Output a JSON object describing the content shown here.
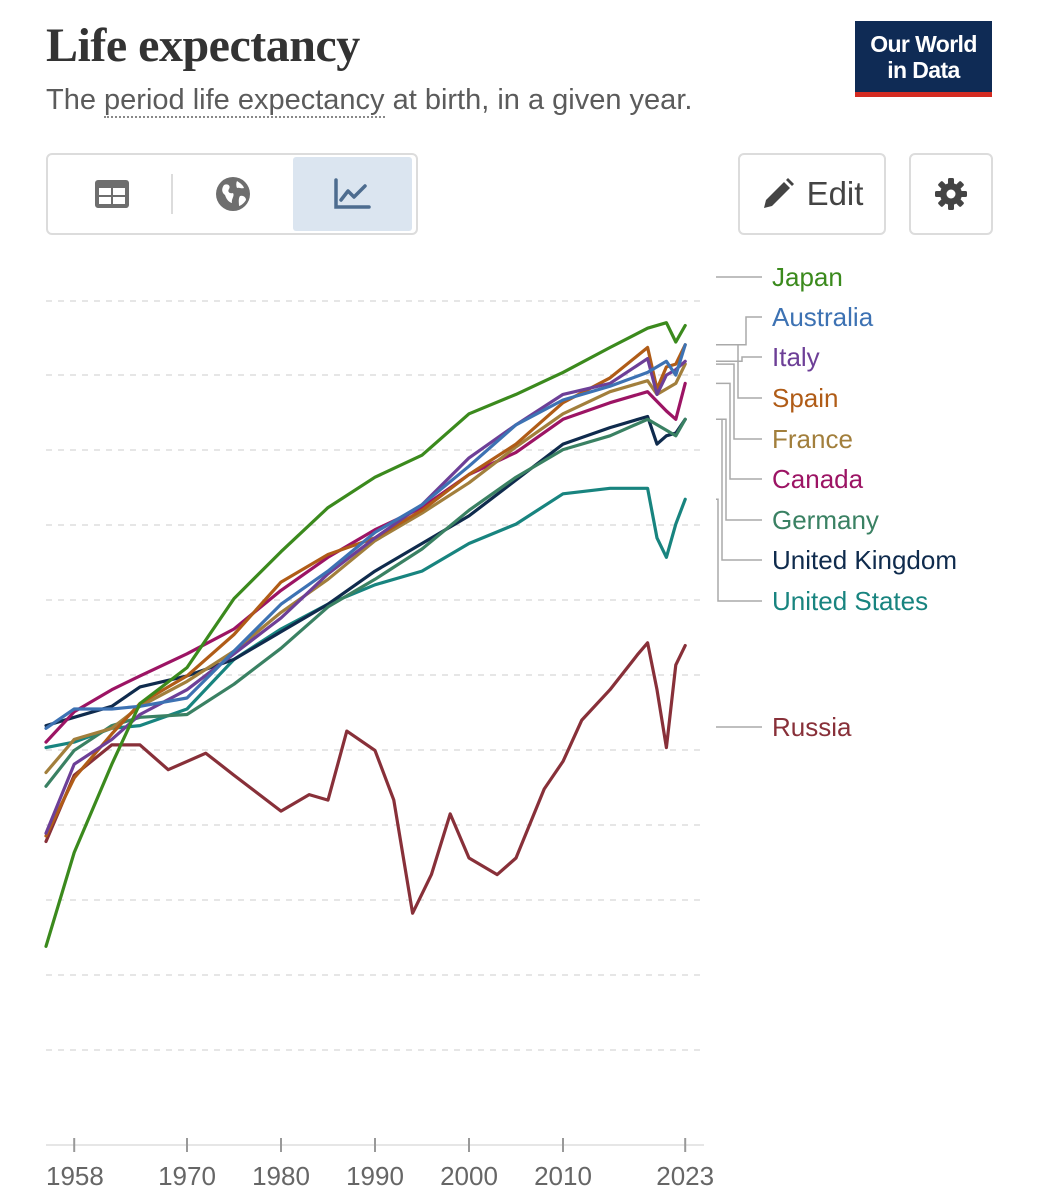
{
  "header": {
    "title": "Life expectancy",
    "subtitle_prefix": "The ",
    "subtitle_term": "period life expectancy",
    "subtitle_suffix": " at birth, in a given year.",
    "logo_line1": "Our World",
    "logo_line2": "in Data"
  },
  "toolbar": {
    "tabs": [
      "table",
      "map",
      "chart"
    ],
    "active_tab": "chart",
    "edit_label": "Edit",
    "icons": [
      "table-icon",
      "globe-icon",
      "line-chart-icon",
      "pencil-icon",
      "gear-icon"
    ]
  },
  "chart_data": {
    "type": "line",
    "title": "Life expectancy",
    "xlim": [
      1955,
      2025
    ],
    "ylim": [
      55,
      87
    ],
    "x_ticks": [
      1958,
      1970,
      1980,
      1990,
      2000,
      2010,
      2023
    ],
    "grid": "horizontal-dashed",
    "legend": "right, labels at line ends",
    "series": [
      {
        "name": "Japan",
        "color": "#3b8a1d",
        "points": [
          [
            1955,
            62.2
          ],
          [
            1958,
            65.6
          ],
          [
            1962,
            68.8
          ],
          [
            1965,
            71.0
          ],
          [
            1970,
            72.3
          ],
          [
            1975,
            74.8
          ],
          [
            1980,
            76.5
          ],
          [
            1985,
            78.1
          ],
          [
            1990,
            79.2
          ],
          [
            1995,
            80.0
          ],
          [
            2000,
            81.5
          ],
          [
            2005,
            82.2
          ],
          [
            2010,
            83.0
          ],
          [
            2015,
            83.9
          ],
          [
            2019,
            84.6
          ],
          [
            2021,
            84.8
          ],
          [
            2022,
            84.1
          ],
          [
            2023,
            84.7
          ]
        ]
      },
      {
        "name": "Australia",
        "color": "#3d72b3",
        "points": [
          [
            1955,
            70.1
          ],
          [
            1958,
            70.8
          ],
          [
            1962,
            70.8
          ],
          [
            1965,
            70.9
          ],
          [
            1970,
            71.2
          ],
          [
            1975,
            72.9
          ],
          [
            1980,
            74.6
          ],
          [
            1985,
            75.8
          ],
          [
            1990,
            77.2
          ],
          [
            1995,
            78.2
          ],
          [
            2000,
            79.6
          ],
          [
            2005,
            81.1
          ],
          [
            2010,
            82.0
          ],
          [
            2015,
            82.5
          ],
          [
            2019,
            83.0
          ],
          [
            2021,
            83.4
          ],
          [
            2022,
            82.9
          ],
          [
            2023,
            84.0
          ]
        ]
      },
      {
        "name": "Italy",
        "color": "#6d3f97",
        "points": [
          [
            1955,
            66.3
          ],
          [
            1958,
            68.8
          ],
          [
            1962,
            69.7
          ],
          [
            1965,
            70.6
          ],
          [
            1970,
            71.5
          ],
          [
            1975,
            72.8
          ],
          [
            1980,
            74.1
          ],
          [
            1985,
            75.7
          ],
          [
            1990,
            77.0
          ],
          [
            1995,
            78.2
          ],
          [
            2000,
            79.9
          ],
          [
            2005,
            81.1
          ],
          [
            2010,
            82.2
          ],
          [
            2015,
            82.6
          ],
          [
            2019,
            83.5
          ],
          [
            2020,
            82.2
          ],
          [
            2021,
            82.9
          ],
          [
            2022,
            83.1
          ],
          [
            2023,
            83.4
          ]
        ]
      },
      {
        "name": "Spain",
        "color": "#b05c17",
        "points": [
          [
            1955,
            66.2
          ],
          [
            1958,
            68.3
          ],
          [
            1962,
            69.9
          ],
          [
            1965,
            71.0
          ],
          [
            1970,
            72.0
          ],
          [
            1975,
            73.5
          ],
          [
            1980,
            75.4
          ],
          [
            1985,
            76.4
          ],
          [
            1990,
            77.0
          ],
          [
            1995,
            78.0
          ],
          [
            2000,
            79.3
          ],
          [
            2005,
            80.4
          ],
          [
            2010,
            81.9
          ],
          [
            2015,
            82.8
          ],
          [
            2019,
            83.9
          ],
          [
            2020,
            82.4
          ],
          [
            2021,
            83.2
          ],
          [
            2022,
            83.3
          ],
          [
            2023,
            84.0
          ]
        ]
      },
      {
        "name": "France",
        "color": "#a27f3c",
        "points": [
          [
            1955,
            68.5
          ],
          [
            1958,
            69.7
          ],
          [
            1962,
            70.1
          ],
          [
            1965,
            70.9
          ],
          [
            1970,
            71.8
          ],
          [
            1975,
            72.9
          ],
          [
            1980,
            74.3
          ],
          [
            1985,
            75.5
          ],
          [
            1990,
            76.9
          ],
          [
            1995,
            77.9
          ],
          [
            2000,
            79.0
          ],
          [
            2005,
            80.3
          ],
          [
            2010,
            81.5
          ],
          [
            2015,
            82.3
          ],
          [
            2019,
            82.7
          ],
          [
            2020,
            82.2
          ],
          [
            2021,
            82.4
          ],
          [
            2022,
            82.6
          ],
          [
            2023,
            83.3
          ]
        ]
      },
      {
        "name": "Canada",
        "color": "#9c1464",
        "points": [
          [
            1955,
            69.6
          ],
          [
            1958,
            70.7
          ],
          [
            1962,
            71.5
          ],
          [
            1965,
            72.0
          ],
          [
            1970,
            72.8
          ],
          [
            1975,
            73.7
          ],
          [
            1980,
            75.1
          ],
          [
            1985,
            76.3
          ],
          [
            1990,
            77.3
          ],
          [
            1995,
            78.1
          ],
          [
            2000,
            79.3
          ],
          [
            2005,
            80.1
          ],
          [
            2010,
            81.3
          ],
          [
            2015,
            81.9
          ],
          [
            2019,
            82.3
          ],
          [
            2021,
            81.6
          ],
          [
            2022,
            81.3
          ],
          [
            2023,
            82.6
          ]
        ]
      },
      {
        "name": "Germany",
        "color": "#3a8163",
        "points": [
          [
            1955,
            68.0
          ],
          [
            1958,
            69.3
          ],
          [
            1962,
            70.2
          ],
          [
            1965,
            70.5
          ],
          [
            1970,
            70.6
          ],
          [
            1975,
            71.7
          ],
          [
            1980,
            73.0
          ],
          [
            1985,
            74.5
          ],
          [
            1990,
            75.5
          ],
          [
            1995,
            76.6
          ],
          [
            2000,
            78.0
          ],
          [
            2005,
            79.2
          ],
          [
            2010,
            80.2
          ],
          [
            2015,
            80.7
          ],
          [
            2019,
            81.3
          ],
          [
            2020,
            81.1
          ],
          [
            2021,
            80.9
          ],
          [
            2022,
            80.7
          ],
          [
            2023,
            81.3
          ]
        ]
      },
      {
        "name": "United Kingdom",
        "color": "#0f2b4d",
        "points": [
          [
            1955,
            70.2
          ],
          [
            1958,
            70.5
          ],
          [
            1962,
            70.9
          ],
          [
            1965,
            71.6
          ],
          [
            1970,
            72.0
          ],
          [
            1975,
            72.6
          ],
          [
            1980,
            73.6
          ],
          [
            1985,
            74.6
          ],
          [
            1990,
            75.8
          ],
          [
            1995,
            76.8
          ],
          [
            2000,
            77.8
          ],
          [
            2005,
            79.1
          ],
          [
            2010,
            80.4
          ],
          [
            2015,
            81.0
          ],
          [
            2019,
            81.4
          ],
          [
            2020,
            80.4
          ],
          [
            2021,
            80.7
          ],
          [
            2022,
            80.8
          ],
          [
            2023,
            81.3
          ]
        ]
      },
      {
        "name": "United States",
        "color": "#18847f",
        "points": [
          [
            1955,
            69.4
          ],
          [
            1958,
            69.6
          ],
          [
            1962,
            70.1
          ],
          [
            1965,
            70.2
          ],
          [
            1970,
            70.8
          ],
          [
            1975,
            72.6
          ],
          [
            1980,
            73.7
          ],
          [
            1985,
            74.6
          ],
          [
            1990,
            75.3
          ],
          [
            1995,
            75.8
          ],
          [
            2000,
            76.8
          ],
          [
            2005,
            77.5
          ],
          [
            2010,
            78.6
          ],
          [
            2015,
            78.8
          ],
          [
            2019,
            78.8
          ],
          [
            2020,
            77.0
          ],
          [
            2021,
            76.3
          ],
          [
            2022,
            77.5
          ],
          [
            2023,
            78.4
          ]
        ]
      },
      {
        "name": "Russia",
        "color": "#883039",
        "points": [
          [
            1955,
            66.0
          ],
          [
            1958,
            68.4
          ],
          [
            1962,
            69.5
          ],
          [
            1965,
            69.5
          ],
          [
            1968,
            68.6
          ],
          [
            1972,
            69.2
          ],
          [
            1975,
            68.4
          ],
          [
            1980,
            67.1
          ],
          [
            1983,
            67.7
          ],
          [
            1985,
            67.5
          ],
          [
            1987,
            70.0
          ],
          [
            1990,
            69.3
          ],
          [
            1992,
            67.5
          ],
          [
            1994,
            63.4
          ],
          [
            1996,
            64.8
          ],
          [
            1998,
            67.0
          ],
          [
            2000,
            65.4
          ],
          [
            2003,
            64.8
          ],
          [
            2005,
            65.4
          ],
          [
            2008,
            67.9
          ],
          [
            2010,
            68.9
          ],
          [
            2012,
            70.4
          ],
          [
            2015,
            71.5
          ],
          [
            2018,
            72.8
          ],
          [
            2019,
            73.2
          ],
          [
            2020,
            71.5
          ],
          [
            2021,
            69.4
          ],
          [
            2022,
            72.4
          ],
          [
            2023,
            73.1
          ]
        ]
      }
    ]
  }
}
